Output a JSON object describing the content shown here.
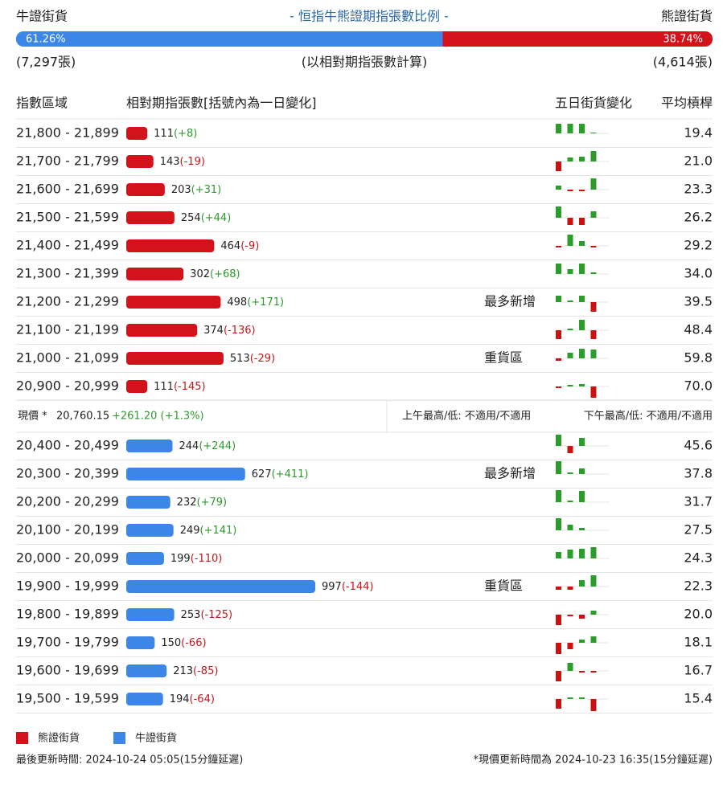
{
  "header": {
    "left": "牛證街貨",
    "title": "- 恒指牛熊證期指張數比例 -",
    "right": "熊證街貨"
  },
  "ratio": {
    "bull": {
      "value": 61.26,
      "label": "61.26%",
      "color": "#3b86e6"
    },
    "bear": {
      "value": 38.74,
      "label": "38.74%",
      "color": "#d3121b"
    }
  },
  "ratio_notes": {
    "left": "(7,297張)",
    "center": "(以相對期指張數計算)",
    "right": "(4,614張)"
  },
  "columns": [
    "指數區域",
    "相對期指張數[括號內為一日變化]",
    "五日街貨變化",
    "平均槓桿"
  ],
  "bear_rows": [
    {
      "range": "21,800 - 21,899",
      "count": 111,
      "change": "(+8)",
      "five_day": [
        12,
        12,
        12,
        1
      ],
      "leverage": "19.4"
    },
    {
      "range": "21,700 - 21,799",
      "count": 143,
      "change": "(-19)",
      "five_day": [
        -12,
        5,
        6,
        13
      ],
      "leverage": "21.0"
    },
    {
      "range": "21,600 - 21,699",
      "count": 203,
      "change": "(+31)",
      "five_day": [
        5,
        -2,
        -2,
        14
      ],
      "leverage": "23.3"
    },
    {
      "range": "21,500 - 21,599",
      "count": 254,
      "change": "(+44)",
      "five_day": [
        14,
        -9,
        -9,
        8
      ],
      "leverage": "26.2"
    },
    {
      "range": "21,400 - 21,499",
      "count": 464,
      "change": "(-9)",
      "five_day": [
        -2,
        14,
        6,
        -2
      ],
      "leverage": "29.2"
    },
    {
      "range": "21,300 - 21,399",
      "count": 302,
      "change": "(+68)",
      "five_day": [
        13,
        6,
        13,
        2
      ],
      "leverage": "34.0"
    },
    {
      "range": "21,200 - 21,299",
      "count": 498,
      "change": "(+171)",
      "note": "最多新增",
      "five_day": [
        8,
        2,
        8,
        -12
      ],
      "leverage": "39.5"
    },
    {
      "range": "21,100 - 21,199",
      "count": 374,
      "change": "(-136)",
      "five_day": [
        -11,
        2,
        13,
        -11
      ],
      "leverage": "48.4"
    },
    {
      "range": "21,000 - 21,099",
      "count": 513,
      "change": "(-29)",
      "note": "重貨區",
      "five_day": [
        -3,
        7,
        12,
        11
      ],
      "leverage": "59.8"
    },
    {
      "range": "20,900 - 20,999",
      "count": 111,
      "change": "(-145)",
      "five_day": [
        -2,
        2,
        3,
        -14
      ],
      "leverage": "70.0"
    }
  ],
  "current": {
    "label": "現價 *",
    "price": "20,760.15",
    "change": "+261.20 (+1.3%)",
    "am": "上午最高/低: 不適用/不適用",
    "pm": "下午最高/低: 不適用/不適用"
  },
  "bull_rows": [
    {
      "range": "20,400 - 20,499",
      "count": 244,
      "change": "(+244)",
      "five_day": [
        14,
        -9,
        10,
        0
      ],
      "leverage": "45.6"
    },
    {
      "range": "20,300 - 20,399",
      "count": 627,
      "change": "(+411)",
      "note": "最多新增",
      "five_day": [
        16,
        2,
        7,
        0
      ],
      "leverage": "37.8"
    },
    {
      "range": "20,200 - 20,299",
      "count": 232,
      "change": "(+79)",
      "five_day": [
        15,
        2,
        14,
        0
      ],
      "leverage": "31.7"
    },
    {
      "range": "20,100 - 20,199",
      "count": 249,
      "change": "(+141)",
      "five_day": [
        15,
        7,
        3,
        0
      ],
      "leverage": "27.5"
    },
    {
      "range": "20,000 - 20,099",
      "count": 199,
      "change": "(-110)",
      "five_day": [
        8,
        11,
        12,
        14
      ],
      "leverage": "24.3"
    },
    {
      "range": "19,900 - 19,999",
      "count": 997,
      "change": "(-144)",
      "note": "重貨區",
      "five_day": [
        -4,
        -4,
        8,
        14
      ],
      "leverage": "22.3"
    },
    {
      "range": "19,800 - 19,899",
      "count": 253,
      "change": "(-125)",
      "five_day": [
        -13,
        -2,
        -5,
        5
      ],
      "leverage": "20.0"
    },
    {
      "range": "19,700 - 19,799",
      "count": 150,
      "change": "(-66)",
      "five_day": [
        -14,
        -8,
        4,
        8
      ],
      "leverage": "18.1"
    },
    {
      "range": "19,600 - 19,699",
      "count": 213,
      "change": "(-85)",
      "five_day": [
        -13,
        10,
        -2,
        -2
      ],
      "leverage": "16.7"
    },
    {
      "range": "19,500 - 19,599",
      "count": 194,
      "change": "(-64)",
      "five_day": [
        -12,
        2,
        2,
        -15
      ],
      "leverage": "15.4"
    }
  ],
  "legend": [
    {
      "label": "熊證街貨",
      "color": "#d3121b"
    },
    {
      "label": "牛證街貨",
      "color": "#3b86e6"
    }
  ],
  "footer": {
    "left": "最後更新時間: 2024-10-24 05:05(15分鐘延遲)",
    "right": "*現價更新時間為 2024-10-23 16:35(15分鐘延遲)"
  }
}
